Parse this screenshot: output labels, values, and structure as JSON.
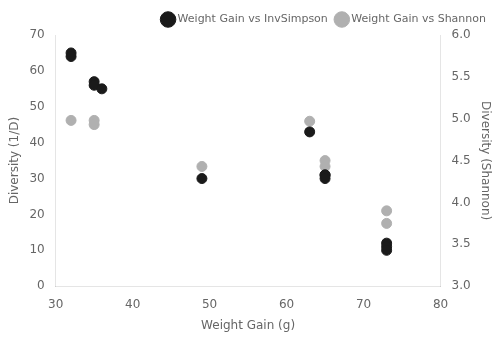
{
  "chart_data": {
    "type": "scatter",
    "xlabel": "Weight Gain (g)",
    "ylabel": "Diversity (1/D)",
    "y2label": "Diversity (Shannon)",
    "xlim": [
      30,
      80
    ],
    "xticks": [
      30,
      40,
      50,
      60,
      70,
      80
    ],
    "ylim": [
      0,
      70
    ],
    "yticks": [
      0,
      10,
      20,
      30,
      40,
      50,
      60,
      70
    ],
    "y2lim": [
      3.0,
      6.0
    ],
    "y2ticks": [
      {
        "value": 3.0,
        "label": "3.0"
      },
      3.5,
      {
        "value": 4.0,
        "label": "4.0"
      },
      4.5,
      {
        "value": 5.0,
        "label": "5.0"
      },
      5.5,
      {
        "value": 6.0,
        "label": "6.0"
      }
    ],
    "grid": false,
    "legend": "upper right",
    "series": [
      {
        "name": "Weight Gain vs InvSimpson",
        "color": "#1a1a1a",
        "axis": "y",
        "x": [
          32,
          32,
          35,
          35,
          36,
          49,
          63,
          65,
          65,
          65,
          73,
          73,
          73
        ],
        "values": [
          65,
          64,
          57,
          56,
          55,
          30,
          43,
          31,
          31,
          30,
          12,
          11,
          10
        ]
      },
      {
        "name": "Weight Gain vs Shannon",
        "color": "#b0b0b0",
        "axis": "y2",
        "x": [
          32,
          35,
          35,
          49,
          63,
          65,
          65,
          73,
          73
        ],
        "values": [
          4.98,
          4.98,
          4.93,
          4.43,
          4.97,
          4.5,
          4.43,
          3.9,
          3.75
        ]
      }
    ]
  }
}
